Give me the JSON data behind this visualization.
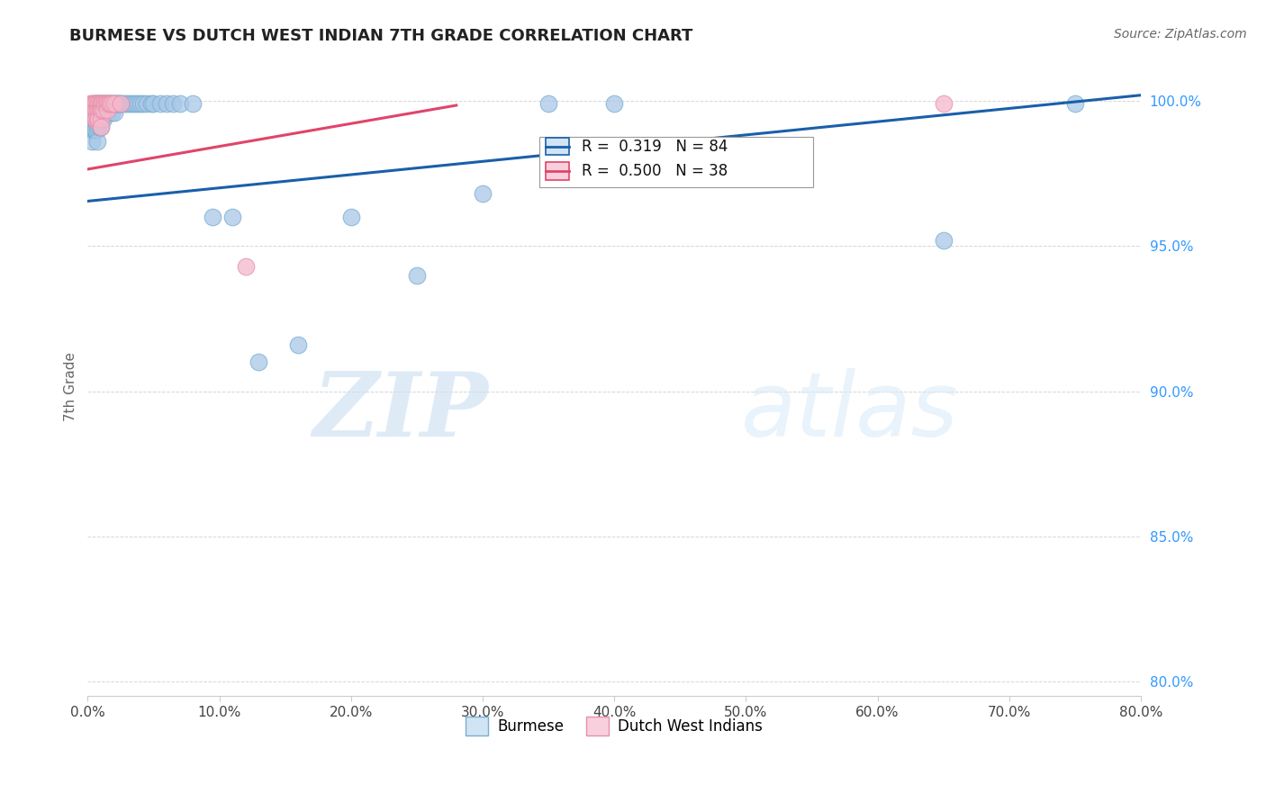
{
  "title": "BURMESE VS DUTCH WEST INDIAN 7TH GRADE CORRELATION CHART",
  "source": "Source: ZipAtlas.com",
  "ylabel": "7th Grade",
  "x_min": 0.0,
  "x_max": 0.8,
  "y_min": 0.795,
  "y_max": 1.008,
  "burmese_color": "#a8c8e8",
  "burmese_edge": "#7aaed0",
  "dutch_color": "#f4b8cc",
  "dutch_edge": "#e890aa",
  "burmese_line_color": "#1a5fa8",
  "dutch_line_color": "#e0446a",
  "R_blue": 0.319,
  "N_blue": 84,
  "R_pink": 0.5,
  "N_pink": 38,
  "watermark_zip": "ZIP",
  "watermark_atlas": "atlas",
  "legend_box_color": "#d0e4f5",
  "legend_pink_box": "#f8d0dd",
  "burmese_x": [
    0.002,
    0.003,
    0.003,
    0.004,
    0.004,
    0.004,
    0.005,
    0.005,
    0.005,
    0.005,
    0.006,
    0.006,
    0.006,
    0.006,
    0.007,
    0.007,
    0.007,
    0.007,
    0.007,
    0.008,
    0.008,
    0.008,
    0.008,
    0.009,
    0.009,
    0.009,
    0.009,
    0.01,
    0.01,
    0.01,
    0.01,
    0.011,
    0.011,
    0.011,
    0.012,
    0.012,
    0.012,
    0.013,
    0.013,
    0.014,
    0.014,
    0.015,
    0.015,
    0.016,
    0.016,
    0.017,
    0.018,
    0.018,
    0.019,
    0.02,
    0.02,
    0.021,
    0.022,
    0.023,
    0.024,
    0.025,
    0.026,
    0.028,
    0.03,
    0.032,
    0.034,
    0.036,
    0.038,
    0.04,
    0.042,
    0.045,
    0.048,
    0.05,
    0.055,
    0.06,
    0.065,
    0.07,
    0.08,
    0.095,
    0.11,
    0.13,
    0.16,
    0.2,
    0.25,
    0.3,
    0.35,
    0.4,
    0.65,
    0.75
  ],
  "burmese_y": [
    0.993,
    0.99,
    0.986,
    0.997,
    0.994,
    0.99,
    0.999,
    0.997,
    0.994,
    0.99,
    0.999,
    0.997,
    0.994,
    0.99,
    0.999,
    0.997,
    0.994,
    0.99,
    0.986,
    0.999,
    0.997,
    0.994,
    0.991,
    0.999,
    0.997,
    0.994,
    0.991,
    0.999,
    0.997,
    0.994,
    0.991,
    0.999,
    0.997,
    0.994,
    0.999,
    0.997,
    0.994,
    0.999,
    0.997,
    0.999,
    0.996,
    0.999,
    0.996,
    0.999,
    0.996,
    0.999,
    0.999,
    0.996,
    0.999,
    0.999,
    0.996,
    0.999,
    0.999,
    0.999,
    0.999,
    0.999,
    0.999,
    0.999,
    0.999,
    0.999,
    0.999,
    0.999,
    0.999,
    0.999,
    0.999,
    0.999,
    0.999,
    0.999,
    0.999,
    0.999,
    0.999,
    0.999,
    0.999,
    0.96,
    0.96,
    0.91,
    0.916,
    0.96,
    0.94,
    0.968,
    0.999,
    0.999,
    0.952,
    0.999
  ],
  "dutch_x": [
    0.002,
    0.003,
    0.003,
    0.004,
    0.004,
    0.005,
    0.005,
    0.005,
    0.006,
    0.006,
    0.006,
    0.007,
    0.007,
    0.007,
    0.008,
    0.008,
    0.008,
    0.009,
    0.009,
    0.01,
    0.01,
    0.01,
    0.01,
    0.011,
    0.011,
    0.012,
    0.012,
    0.013,
    0.014,
    0.015,
    0.015,
    0.016,
    0.017,
    0.018,
    0.02,
    0.025,
    0.12,
    0.65
  ],
  "dutch_y": [
    0.999,
    0.999,
    0.997,
    0.999,
    0.997,
    0.999,
    0.997,
    0.994,
    0.999,
    0.997,
    0.994,
    0.999,
    0.997,
    0.994,
    0.999,
    0.997,
    0.994,
    0.999,
    0.997,
    0.999,
    0.997,
    0.994,
    0.991,
    0.999,
    0.997,
    0.999,
    0.997,
    0.999,
    0.999,
    0.999,
    0.997,
    0.999,
    0.999,
    0.999,
    0.999,
    0.999,
    0.943,
    0.999
  ],
  "blue_line_x": [
    0.0,
    0.8
  ],
  "blue_line_y": [
    0.9655,
    1.002
  ],
  "pink_line_x": [
    0.0,
    0.28
  ],
  "pink_line_y": [
    0.9765,
    0.9985
  ]
}
